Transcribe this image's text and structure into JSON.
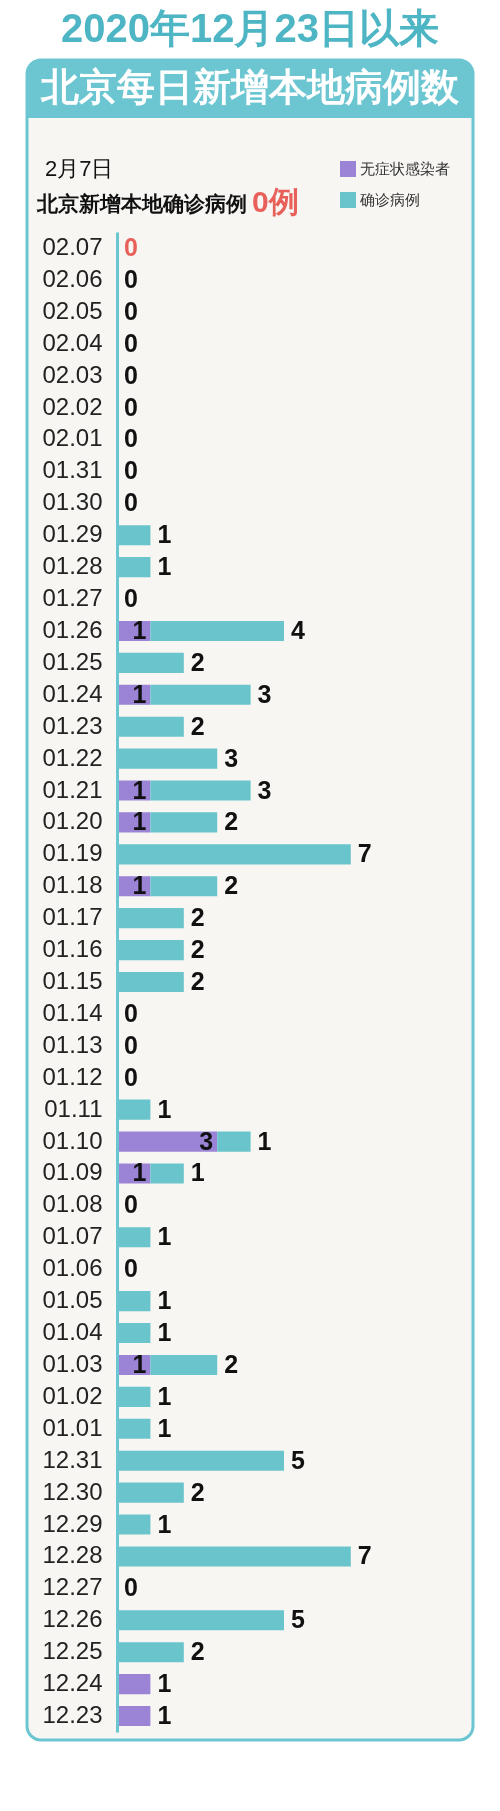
{
  "chart_data": {
    "type": "bar",
    "orientation": "horizontal",
    "stacked": true,
    "title": "2020年12月23日以来",
    "subtitle": "北京每日新增本地病例数",
    "annotations": [
      "2月7日",
      "北京新增本地确诊病例",
      "0例"
    ],
    "categories": [
      "02.07",
      "02.06",
      "02.05",
      "02.04",
      "02.03",
      "02.02",
      "02.01",
      "01.31",
      "01.30",
      "01.29",
      "01.28",
      "01.27",
      "01.26",
      "01.25",
      "01.24",
      "01.23",
      "01.22",
      "01.21",
      "01.20",
      "01.19",
      "01.18",
      "01.17",
      "01.16",
      "01.15",
      "01.14",
      "01.13",
      "01.12",
      "01.11",
      "01.10",
      "01.09",
      "01.08",
      "01.07",
      "01.06",
      "01.05",
      "01.04",
      "01.03",
      "01.02",
      "01.01",
      "12.31",
      "12.30",
      "12.29",
      "12.28",
      "12.27",
      "12.26",
      "12.25",
      "12.24",
      "12.23"
    ],
    "series": [
      {
        "name": "无症状感染者",
        "color": "#9b83d6",
        "values": [
          0,
          0,
          0,
          0,
          0,
          0,
          0,
          0,
          0,
          0,
          0,
          0,
          1,
          0,
          1,
          0,
          0,
          1,
          1,
          0,
          1,
          0,
          0,
          0,
          0,
          0,
          0,
          0,
          3,
          1,
          0,
          0,
          0,
          0,
          0,
          1,
          0,
          0,
          0,
          0,
          0,
          0,
          0,
          0,
          0,
          1,
          1
        ],
        "value_labels": [
          null,
          null,
          null,
          null,
          null,
          null,
          null,
          null,
          null,
          null,
          null,
          null,
          "1",
          null,
          "1",
          null,
          null,
          "1",
          "1",
          null,
          "1",
          null,
          null,
          null,
          null,
          null,
          null,
          null,
          "3",
          "1",
          null,
          null,
          null,
          null,
          null,
          "1",
          null,
          null,
          null,
          null,
          null,
          null,
          null,
          null,
          null,
          "1",
          "1"
        ]
      },
      {
        "name": "确诊病例",
        "color": "#6ac4cc",
        "values": [
          0,
          0,
          0,
          0,
          0,
          0,
          0,
          0,
          0,
          1,
          1,
          0,
          4,
          2,
          3,
          2,
          3,
          3,
          2,
          7,
          2,
          2,
          2,
          2,
          0,
          0,
          0,
          1,
          1,
          1,
          0,
          1,
          0,
          1,
          1,
          2,
          1,
          1,
          5,
          2,
          1,
          7,
          0,
          5,
          2,
          0,
          0
        ],
        "value_labels": [
          "0",
          "0",
          "0",
          "0",
          "0",
          "0",
          "0",
          "0",
          "0",
          "1",
          "1",
          "0",
          "4",
          "2",
          "3",
          "2",
          "3",
          "3",
          "2",
          "7",
          "2",
          "2",
          "2",
          "2",
          "0",
          "0",
          "0",
          "1",
          "1",
          "1",
          "0",
          "1",
          "0",
          "1",
          "1",
          "2",
          "1",
          "1",
          "5",
          "2",
          "1",
          "7",
          "0",
          "5",
          "2",
          null,
          null
        ]
      }
    ],
    "tick_labels": "y",
    "legend": "top right"
  }
}
